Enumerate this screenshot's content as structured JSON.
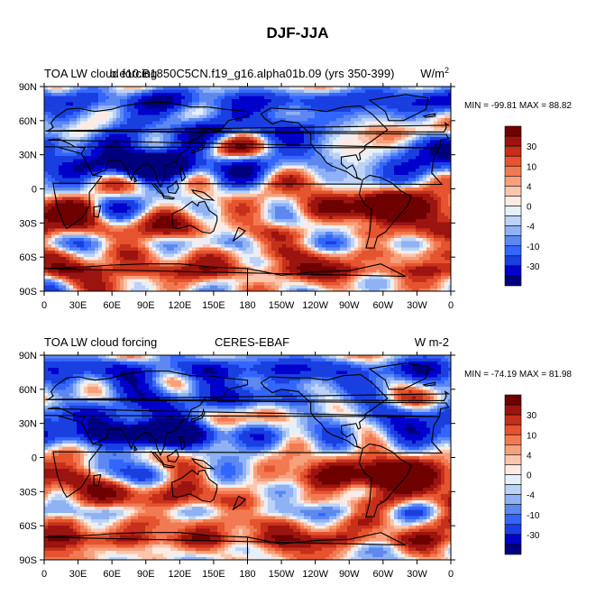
{
  "chart_data": {
    "type": "heatmap",
    "title": "DJF-JJA",
    "palette": [
      "#00007f",
      "#0000cc",
      "#1a3fe0",
      "#3366ff",
      "#5d88f2",
      "#8fb2f5",
      "#bcd2f7",
      "#e6f0fb",
      "#fdebe3",
      "#fbc6ad",
      "#f7a07c",
      "#f27a52",
      "#e5542e",
      "#c6301b",
      "#9c1410",
      "#6e0000"
    ],
    "panels": [
      {
        "left_title": "TOA LW cloud forcing",
        "center_title": "b.e10.B1850C5CN.f19_g16.alpha01b.09 (yrs 350-399)",
        "units_prefix": "W/m",
        "units_sup": "2",
        "stats": "MIN = -99.81 MAX =  88.82",
        "seed": 1
      },
      {
        "left_title": "TOA LW cloud forcing",
        "center_title": "CERES-EBAF",
        "units_prefix": "W m-2",
        "units_sup": "",
        "stats": "MIN = -74.19 MAX =  81.98",
        "seed": 2
      }
    ],
    "x_ticks": [
      "0",
      "30E",
      "60E",
      "90E",
      "120E",
      "150E",
      "180",
      "150W",
      "120W",
      "90W",
      "60W",
      "30W",
      "0"
    ],
    "y_ticks": [
      "90N",
      "60N",
      "30N",
      "0",
      "30S",
      "60S",
      "90S"
    ],
    "xlim": [
      0,
      360
    ],
    "ylim": [
      -90,
      90
    ],
    "colorbar_labels": [
      "30",
      "10",
      "4",
      "0",
      "-4",
      "-10",
      "-30"
    ]
  }
}
